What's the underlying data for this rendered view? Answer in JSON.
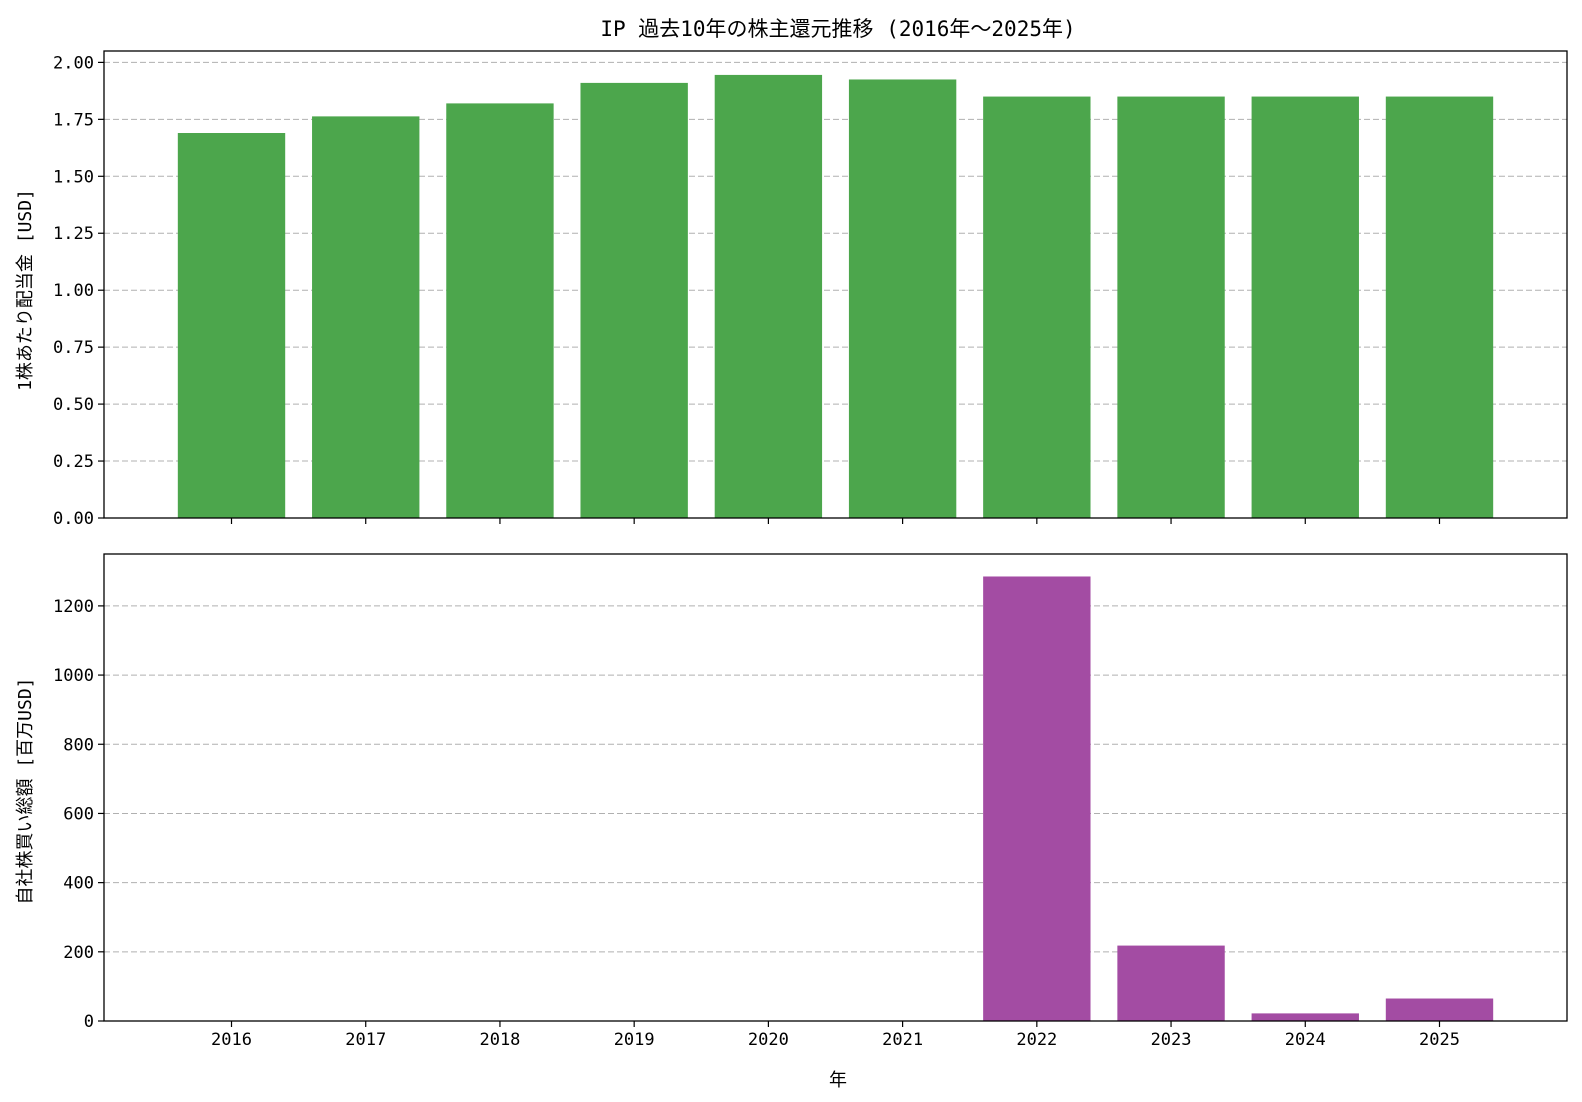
{
  "chart_data": [
    {
      "type": "bar",
      "title": "IP 過去10年の株主還元推移 (2016年～2025年)",
      "categories": [
        "2016",
        "2017",
        "2018",
        "2019",
        "2020",
        "2021",
        "2022",
        "2023",
        "2024",
        "2025"
      ],
      "values": [
        1.69,
        1.763,
        1.82,
        1.91,
        1.945,
        1.925,
        1.85,
        1.85,
        1.85,
        1.85
      ],
      "ylabel": "1株あたり配当金 [USD]",
      "xlabel": "",
      "ylim": [
        0,
        2.05
      ],
      "yticks": [
        "0.00",
        "0.25",
        "0.50",
        "0.75",
        "1.00",
        "1.25",
        "1.50",
        "1.75",
        "2.00"
      ],
      "tick_labels_x_visible": false,
      "color": "#4ca64c",
      "grid": true
    },
    {
      "type": "bar",
      "title": "",
      "categories": [
        "2016",
        "2017",
        "2018",
        "2019",
        "2020",
        "2021",
        "2022",
        "2023",
        "2024",
        "2025"
      ],
      "values": [
        0,
        0,
        0,
        0,
        0,
        0,
        1285,
        218,
        22,
        65
      ],
      "ylabel": "自社株買い総額 [百万USD]",
      "xlabel": "年",
      "ylim": [
        0,
        1350
      ],
      "yticks": [
        "0",
        "200",
        "400",
        "600",
        "800",
        "1000",
        "1200"
      ],
      "tick_labels_x_visible": true,
      "color": "#a34ca3",
      "grid": true
    }
  ]
}
